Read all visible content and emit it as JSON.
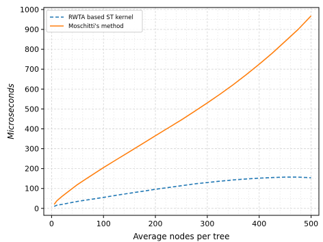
{
  "chart_data": {
    "type": "line",
    "xlabel": "Average nodes per tree",
    "ylabel": "Microseconds",
    "xlim": [
      -15,
      515
    ],
    "ylim": [
      -35,
      1010
    ],
    "xticks": [
      0,
      100,
      200,
      300,
      400,
      500
    ],
    "yticks": [
      0,
      100,
      200,
      300,
      400,
      500,
      600,
      700,
      800,
      900,
      1000
    ],
    "grid": true,
    "legend_position": "top-left",
    "series": [
      {
        "name": "RWTA based ST kernel",
        "color": "#1f77b4",
        "linestyle": "dashed",
        "x": [
          5,
          10,
          20,
          30,
          50,
          75,
          100,
          125,
          150,
          175,
          200,
          225,
          250,
          275,
          300,
          325,
          350,
          375,
          400,
          425,
          450,
          475,
          500
        ],
        "y": [
          10,
          16,
          20,
          25,
          35,
          45,
          55,
          66,
          76,
          86,
          96,
          105,
          114,
          123,
          130,
          137,
          143,
          148,
          152,
          155,
          157,
          157,
          154
        ]
      },
      {
        "name": "Moschitti's method",
        "color": "#ff7f0e",
        "linestyle": "solid",
        "x": [
          5,
          10,
          20,
          30,
          50,
          75,
          100,
          125,
          150,
          175,
          200,
          225,
          250,
          275,
          300,
          325,
          350,
          375,
          400,
          425,
          450,
          475,
          500
        ],
        "y": [
          20,
          38,
          60,
          80,
          120,
          163,
          205,
          245,
          285,
          325,
          365,
          405,
          445,
          487,
          530,
          575,
          622,
          672,
          725,
          780,
          840,
          900,
          968
        ]
      }
    ]
  }
}
